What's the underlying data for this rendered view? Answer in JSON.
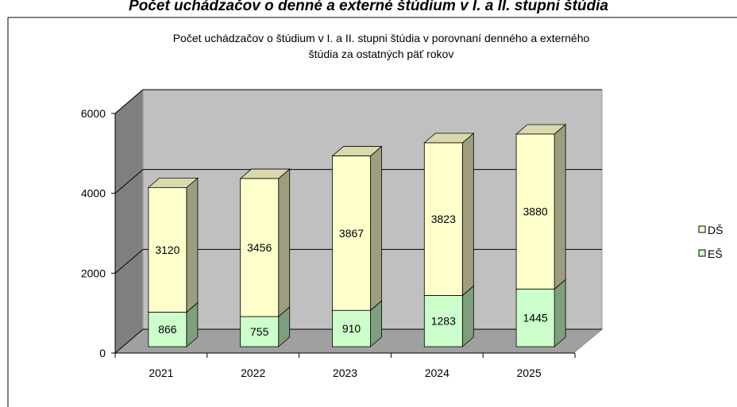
{
  "heading": "Počet uchádzačov o denné a externé štúdium v I. a II. stupni štúdia",
  "chart_data": {
    "type": "bar3d_stacked",
    "title": [
      "Počet uchádzačov o štúdium  v I. a II.  stupni štúdia v porovnaní denného a externého",
      "štúdia za ostatných päť rokov"
    ],
    "categories": [
      "2021",
      "2022",
      "2023",
      "2024",
      "2025"
    ],
    "series": [
      {
        "name": "EŠ",
        "color": "#ccffcc",
        "values": [
          866,
          755,
          910,
          1283,
          1445
        ]
      },
      {
        "name": "DŠ",
        "color": "#ffffcc",
        "values": [
          3120,
          3456,
          3867,
          3823,
          3880
        ]
      }
    ],
    "ylim": [
      0,
      6000
    ],
    "yticks": [
      0,
      2000,
      4000,
      6000
    ],
    "grid": true,
    "legend": "right"
  }
}
